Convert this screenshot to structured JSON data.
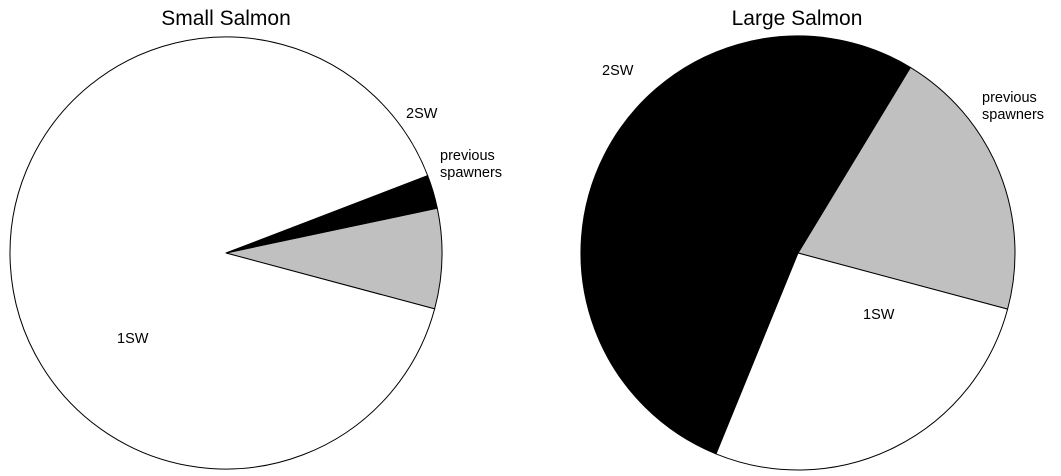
{
  "chart_data": [
    {
      "type": "pie",
      "title": "Small Salmon",
      "slices": [
        {
          "label": "1SW",
          "value": 90,
          "color": "#ffffff"
        },
        {
          "label": "2SW",
          "value": 2.5,
          "color": "#000000"
        },
        {
          "label": "previous spawners",
          "value": 7.5,
          "color": "#c0c0c0"
        }
      ]
    },
    {
      "type": "pie",
      "title": "Large Salmon",
      "slices": [
        {
          "label": "1SW",
          "value": 27,
          "color": "#ffffff"
        },
        {
          "label": "2SW",
          "value": 52.5,
          "color": "#000000"
        },
        {
          "label": "previous spawners",
          "value": 20.5,
          "color": "#c0c0c0"
        }
      ]
    }
  ]
}
